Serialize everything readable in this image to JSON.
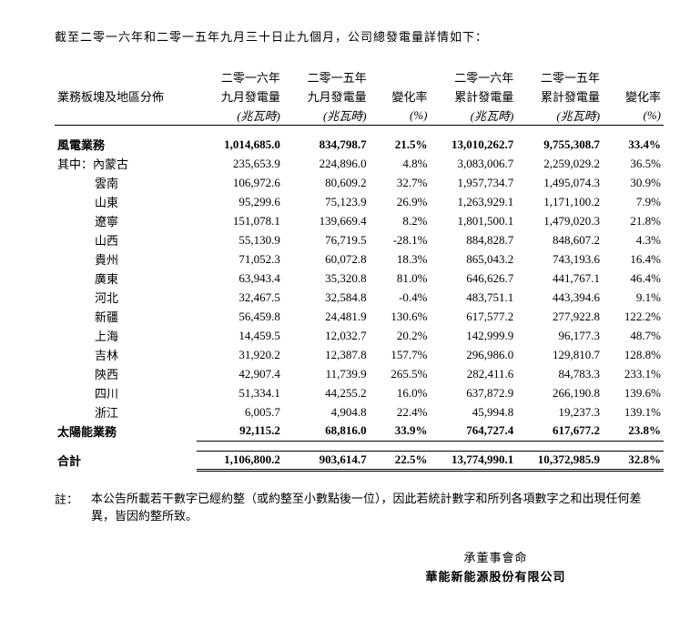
{
  "intro": "截至二零一六年和二零一五年九月三十日止九個月，公司總發電量詳情如下：",
  "headers": {
    "col0": "業務板塊及地區分佈",
    "col1_l1": "二零一六年",
    "col1_l2": "九月發電量",
    "col1_unit": "(兆瓦時)",
    "col2_l1": "二零一五年",
    "col2_l2": "九月發電量",
    "col2_unit": "(兆瓦時)",
    "col3_l1": "",
    "col3_l2": "變化率",
    "col3_unit": "(%)",
    "col4_l1": "二零一六年",
    "col4_l2": "累計發電量",
    "col4_unit": "(兆瓦時)",
    "col5_l1": "二零一五年",
    "col5_l2": "累計發電量",
    "col5_unit": "(兆瓦時)",
    "col6_l1": "",
    "col6_l2": "變化率",
    "col6_unit": "(%)"
  },
  "wind": {
    "label": "風電業務",
    "v": [
      "1,014,685.0",
      "834,798.7",
      "21.5%",
      "13,010,262.7",
      "9,755,308.7",
      "33.4%"
    ]
  },
  "sublabel": "其中：",
  "regions": [
    {
      "label": "內蒙古",
      "v": [
        "235,653.9",
        "224,896.0",
        "4.8%",
        "3,083,006.7",
        "2,259,029.2",
        "36.5%"
      ]
    },
    {
      "label": "雲南",
      "v": [
        "106,972.6",
        "80,609.2",
        "32.7%",
        "1,957,734.7",
        "1,495,074.3",
        "30.9%"
      ]
    },
    {
      "label": "山東",
      "v": [
        "95,299.6",
        "75,123.9",
        "26.9%",
        "1,263,929.1",
        "1,171,100.2",
        "7.9%"
      ]
    },
    {
      "label": "遼寧",
      "v": [
        "151,078.1",
        "139,669.4",
        "8.2%",
        "1,801,500.1",
        "1,479,020.3",
        "21.8%"
      ]
    },
    {
      "label": "山西",
      "v": [
        "55,130.9",
        "76,719.5",
        "-28.1%",
        "884,828.7",
        "848,607.2",
        "4.3%"
      ]
    },
    {
      "label": "貴州",
      "v": [
        "71,052.3",
        "60,072.8",
        "18.3%",
        "865,043.2",
        "743,193.6",
        "16.4%"
      ]
    },
    {
      "label": "廣東",
      "v": [
        "63,943.4",
        "35,320.8",
        "81.0%",
        "646,626.7",
        "441,767.1",
        "46.4%"
      ]
    },
    {
      "label": "河北",
      "v": [
        "32,467.5",
        "32,584.8",
        "-0.4%",
        "483,751.1",
        "443,394.6",
        "9.1%"
      ]
    },
    {
      "label": "新疆",
      "v": [
        "56,459.8",
        "24,481.9",
        "130.6%",
        "617,577.2",
        "277,922.8",
        "122.2%"
      ]
    },
    {
      "label": "上海",
      "v": [
        "14,459.5",
        "12,032.7",
        "20.2%",
        "142,999.9",
        "96,177.3",
        "48.7%"
      ]
    },
    {
      "label": "吉林",
      "v": [
        "31,920.2",
        "12,387.8",
        "157.7%",
        "296,986.0",
        "129,810.7",
        "128.8%"
      ]
    },
    {
      "label": "陝西",
      "v": [
        "42,907.4",
        "11,739.9",
        "265.5%",
        "282,411.6",
        "84,783.3",
        "233.1%"
      ]
    },
    {
      "label": "四川",
      "v": [
        "51,334.1",
        "44,255.2",
        "16.0%",
        "637,872.9",
        "266,190.8",
        "139.6%"
      ]
    },
    {
      "label": "浙江",
      "v": [
        "6,005.7",
        "4,904.8",
        "22.4%",
        "45,994.8",
        "19,237.3",
        "139.1%"
      ]
    }
  ],
  "solar": {
    "label": "太陽能業務",
    "v": [
      "92,115.2",
      "68,816.0",
      "33.9%",
      "764,727.4",
      "617,677.2",
      "23.8%"
    ]
  },
  "total": {
    "label": "合計",
    "v": [
      "1,106,800.2",
      "903,614.7",
      "22.5%",
      "13,774,990.1",
      "10,372,985.9",
      "32.8%"
    ]
  },
  "note_lbl": "註：",
  "note_txt": "本公告所載若干數字已經約整（或約整至小數點後一位），因此若統計數字和所列各項數字之和出現任何差異，皆因約整所致。",
  "sign1": "承董事會命",
  "sign2": "華能新能源股份有限公司"
}
